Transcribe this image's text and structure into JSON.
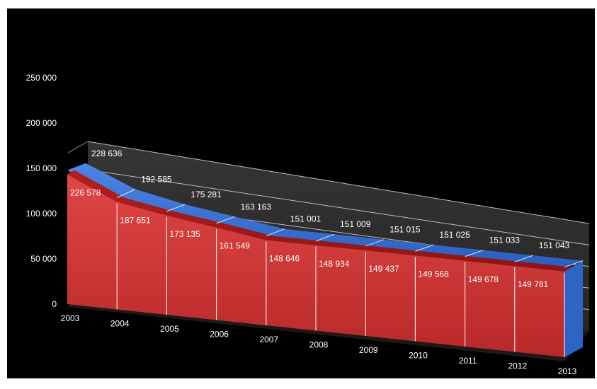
{
  "chart_data": {
    "type": "area",
    "view": "3d",
    "categories": [
      "2003",
      "2004",
      "2005",
      "2006",
      "2007",
      "2008",
      "2009",
      "2010",
      "2011",
      "2012",
      "2013"
    ],
    "series": [
      {
        "values": [
          228636,
          192585,
          175281,
          163163,
          151001,
          151009,
          151015,
          151025,
          151033,
          151043,
          151043
        ],
        "labels": [
          "228 636",
          "192 585",
          "175 281",
          "163 163",
          "151 001",
          "151 009",
          "151 015",
          "151 025",
          "151 033",
          "151 043",
          ""
        ],
        "color": "#3a73d8",
        "position": "back"
      },
      {
        "values": [
          226578,
          187651,
          173135,
          161549,
          148646,
          148934,
          149437,
          149568,
          149678,
          149781,
          149781
        ],
        "labels": [
          "226 578",
          "187 651",
          "173 135",
          "161 549",
          "148 646",
          "148 934",
          "149 437",
          "149 568",
          "149 678",
          "149 781",
          ""
        ],
        "color": "#d63a3a",
        "position": "front"
      }
    ],
    "ylim": [
      0,
      250000
    ],
    "y_ticks": [
      "0",
      "50 000",
      "100 000",
      "150 000",
      "200 000",
      "250 000"
    ],
    "grid": true,
    "legend": "none",
    "colors": {
      "background": "#000000",
      "wall": "#2b2b2b",
      "gridline": "#bdbdbd",
      "text": "#ffffff"
    }
  }
}
